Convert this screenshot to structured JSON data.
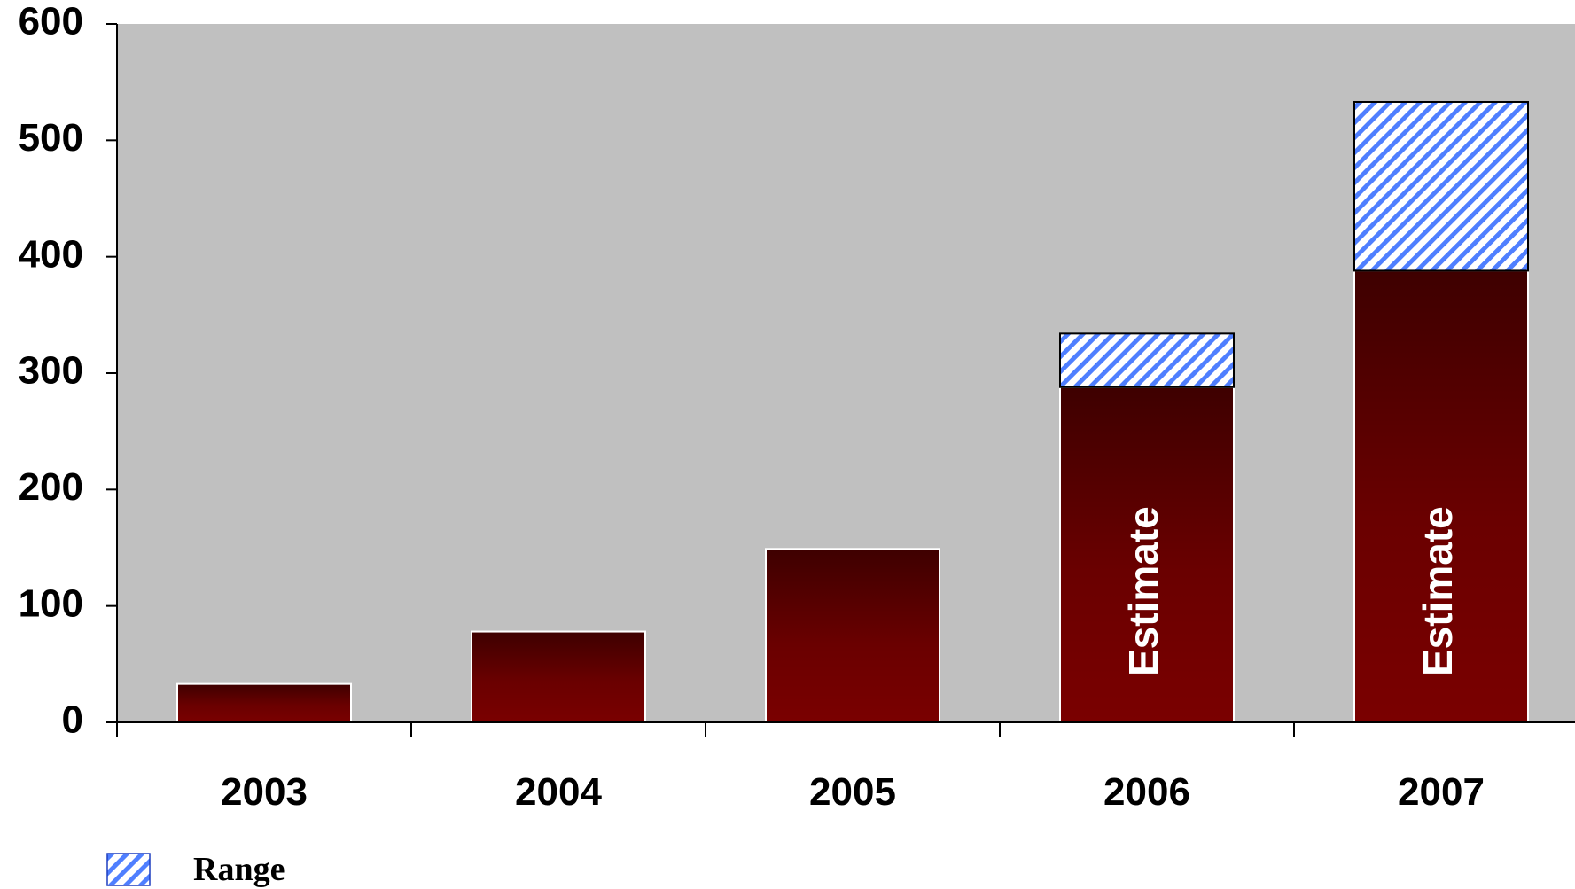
{
  "chart_data": {
    "type": "bar",
    "stacked": true,
    "categories": [
      "2003",
      "2004",
      "2005",
      "2006",
      "2007"
    ],
    "series": [
      {
        "values": [
          33,
          78,
          149,
          288,
          388
        ],
        "color": "#6e0000",
        "fill": "gradient-dark-red"
      },
      {
        "name": "Range",
        "values": [
          0,
          0,
          0,
          46,
          145
        ],
        "color": "#4f7fff",
        "fill": "diagonal-hatch-blue"
      }
    ],
    "bar_annotations": [
      "",
      "",
      "",
      "Estimate",
      "Estimate"
    ],
    "yticks": [
      0,
      100,
      200,
      300,
      400,
      500,
      600
    ],
    "ylim": [
      0,
      600
    ],
    "title": "",
    "xlabel": "",
    "ylabel": "",
    "grid": false,
    "plot_background": "#c0c0c0",
    "legend": {
      "position": "bottom-left",
      "entries": [
        "Range"
      ]
    }
  }
}
